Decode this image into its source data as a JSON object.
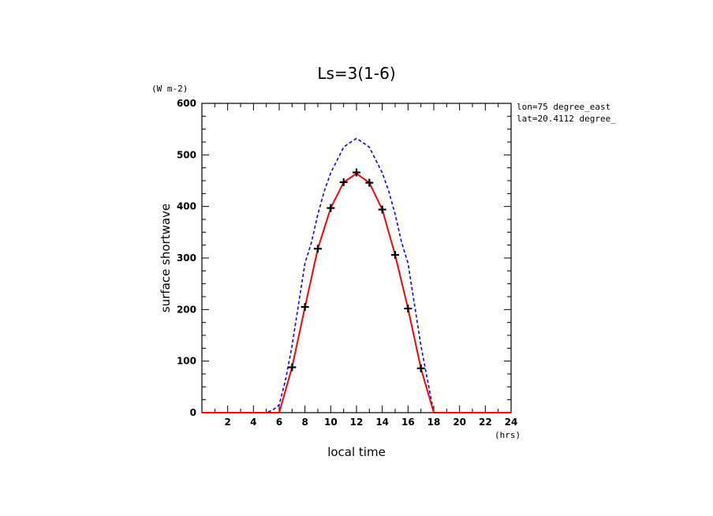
{
  "chart_data": {
    "type": "line",
    "title": "Ls=3(1-6)",
    "xlabel": "local time",
    "ylabel": "surface shortwave",
    "x_unit": "(hrs)",
    "y_unit": "(W m-2)",
    "info_line1": "lon=75 degree_east",
    "info_line2": "lat=20.4112 degree_",
    "xlim": [
      0,
      24
    ],
    "ylim": [
      0,
      600
    ],
    "x_ticks": [
      "2",
      "4",
      "6",
      "8",
      "10",
      "12",
      "14",
      "16",
      "18",
      "20",
      "22",
      "24"
    ],
    "y_ticks": [
      "0",
      "100",
      "200",
      "300",
      "400",
      "500",
      "600"
    ],
    "grid": false,
    "series": [
      {
        "style": "dashed",
        "color": "#0000ff",
        "x": [
          0,
          1,
          2,
          3,
          4,
          5,
          5.5,
          6,
          6.5,
          7,
          7.5,
          8,
          8.5,
          9,
          9.5,
          10,
          10.5,
          11,
          11.5,
          12,
          12.5,
          13,
          13.5,
          14,
          14.5,
          15,
          15.5,
          16,
          16.5,
          17,
          17.5,
          18,
          19,
          20,
          21,
          22,
          23,
          24
        ],
        "y": [
          0,
          0,
          0,
          0,
          0,
          0,
          5,
          15,
          65,
          130,
          210,
          290,
          330,
          385,
          430,
          465,
          490,
          515,
          524,
          532,
          524,
          515,
          490,
          465,
          430,
          385,
          330,
          290,
          210,
          130,
          65,
          0,
          0,
          0,
          0,
          0,
          0,
          0
        ]
      },
      {
        "style": "solid",
        "color": "#ff0000",
        "x": [
          0,
          1,
          2,
          3,
          4,
          5,
          6,
          7,
          8,
          9,
          10,
          11,
          12,
          13,
          14,
          15,
          16,
          17,
          18,
          19,
          20,
          21,
          22,
          23,
          24
        ],
        "y": [
          0,
          0,
          0,
          0,
          0,
          0,
          0,
          88,
          205,
          318,
          397,
          447,
          464,
          446,
          394,
          306,
          202,
          86,
          0,
          0,
          0,
          0,
          0,
          0,
          0
        ]
      }
    ],
    "markers": {
      "symbol": "plus",
      "color": "#000000",
      "x": [
        7,
        8,
        9,
        10,
        11,
        12,
        13,
        14,
        15,
        16,
        17
      ],
      "y": [
        88,
        205,
        318,
        397,
        447,
        466,
        446,
        394,
        306,
        202,
        86
      ]
    }
  }
}
